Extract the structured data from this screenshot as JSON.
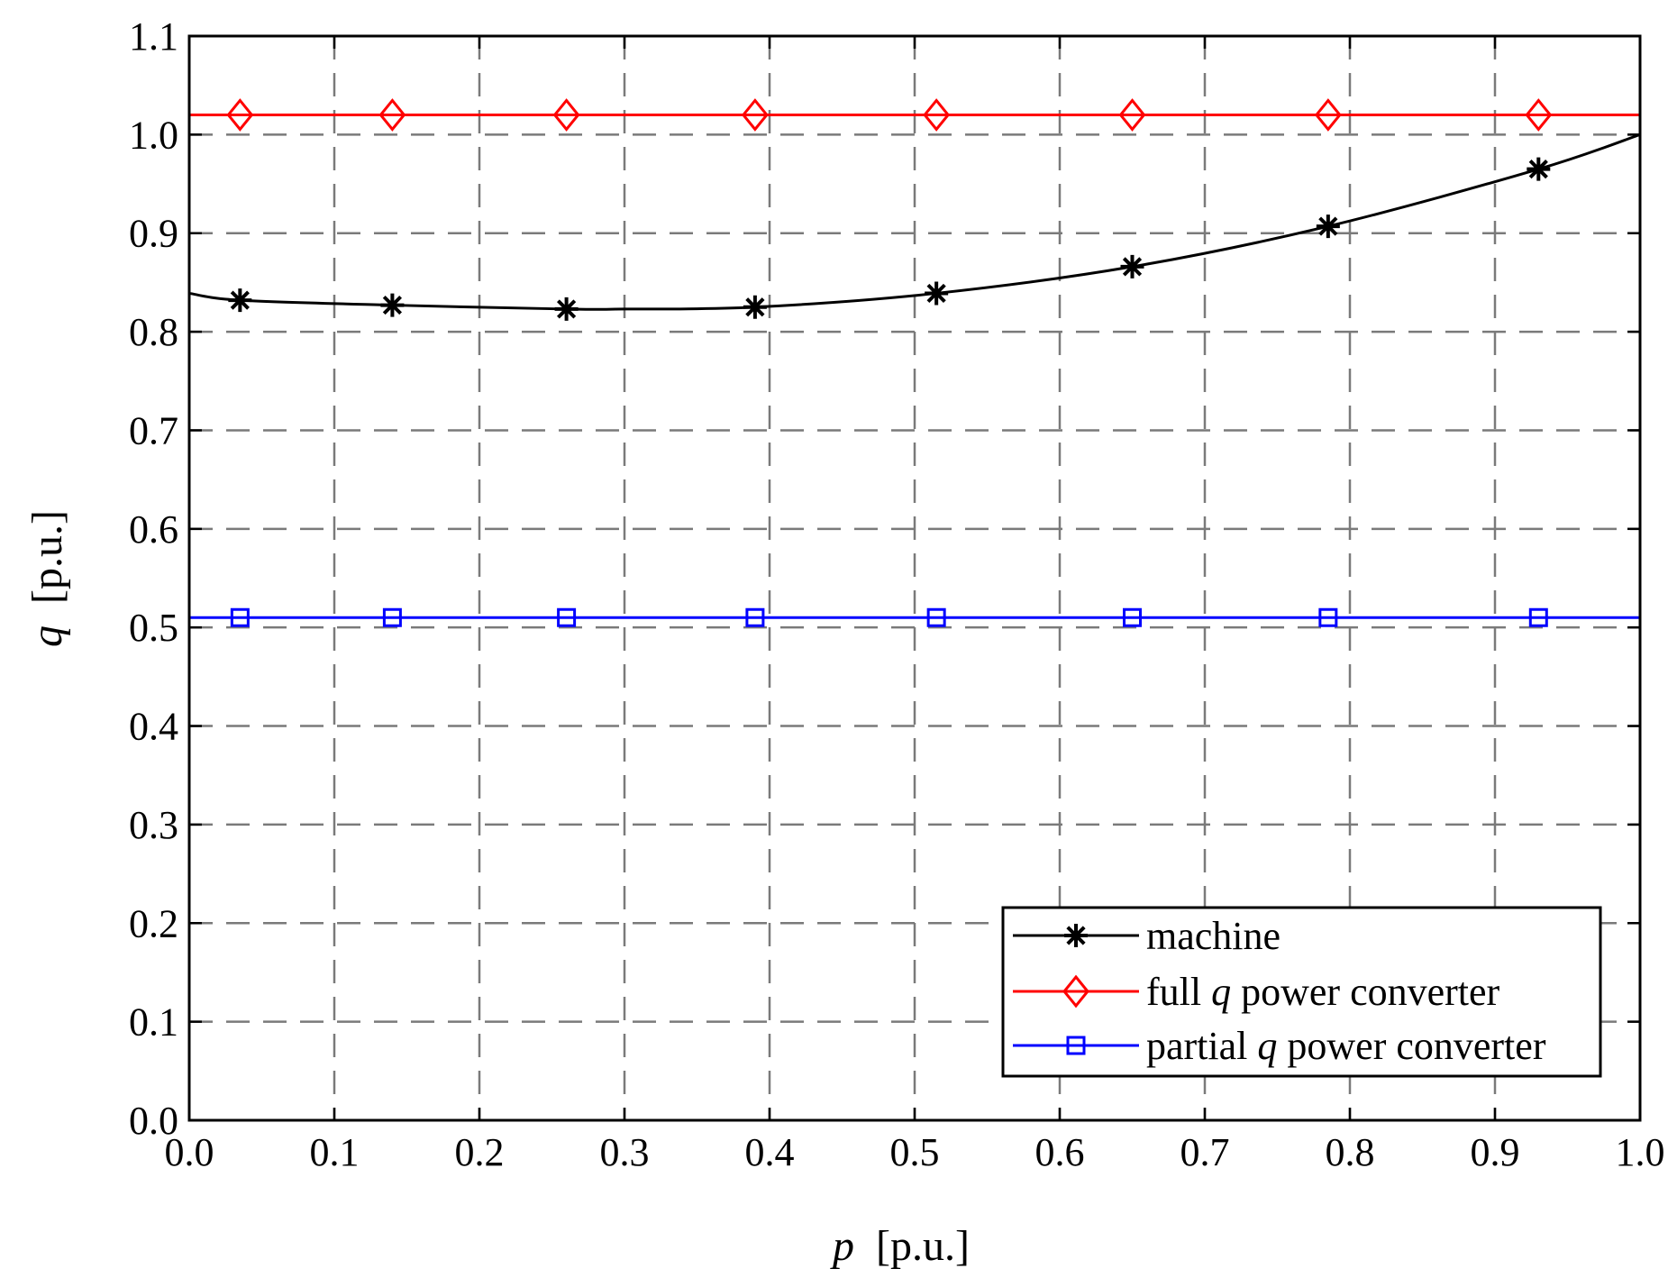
{
  "chart_data": {
    "type": "line",
    "title": "",
    "xlabel": {
      "symbol": "p",
      "unit": "[p.u.]"
    },
    "ylabel": {
      "symbol": "q",
      "unit": "[p.u.]"
    },
    "xlim": [
      0.0,
      1.0
    ],
    "ylim": [
      0.0,
      1.1
    ],
    "xticks": [
      0.0,
      0.1,
      0.2,
      0.3,
      0.4,
      0.5,
      0.6,
      0.7,
      0.8,
      0.9,
      1.0
    ],
    "yticks": [
      0.0,
      0.1,
      0.2,
      0.3,
      0.4,
      0.5,
      0.6,
      0.7,
      0.8,
      0.9,
      1.0,
      1.1
    ],
    "xtick_labels": [
      "0.0",
      "0.1",
      "0.2",
      "0.3",
      "0.4",
      "0.5",
      "0.6",
      "0.7",
      "0.8",
      "0.9",
      "1.0"
    ],
    "ytick_labels": [
      "0.0",
      "0.1",
      "0.2",
      "0.3",
      "0.4",
      "0.5",
      "0.6",
      "0.7",
      "0.8",
      "0.9",
      "1.0",
      "1.1"
    ],
    "grid": "dashed",
    "legend_position": "bottom-right",
    "series": [
      {
        "name": "machine",
        "legend_parts": [
          "machine"
        ],
        "color": "#000000",
        "marker": "asterisk",
        "curve": {
          "x": [
            0.0,
            0.035,
            0.14,
            0.26,
            0.3,
            0.39,
            0.515,
            0.65,
            0.785,
            0.93,
            1.0
          ],
          "y": [
            0.839,
            0.832,
            0.827,
            0.823,
            0.823,
            0.825,
            0.839,
            0.866,
            0.907,
            0.965,
            1.0
          ]
        },
        "markers": {
          "x": [
            0.035,
            0.14,
            0.26,
            0.39,
            0.515,
            0.65,
            0.785,
            0.93
          ],
          "y": [
            0.832,
            0.827,
            0.823,
            0.825,
            0.839,
            0.866,
            0.907,
            0.965
          ]
        }
      },
      {
        "name": "full q power converter",
        "legend_parts": [
          "full ",
          "q",
          " power converter"
        ],
        "color": "#ff0000",
        "marker": "diamond",
        "curve": {
          "x": [
            0.0,
            1.0
          ],
          "y": [
            1.02,
            1.02
          ]
        },
        "markers": {
          "x": [
            0.035,
            0.14,
            0.26,
            0.39,
            0.515,
            0.65,
            0.785,
            0.93
          ],
          "y": [
            1.02,
            1.02,
            1.02,
            1.02,
            1.02,
            1.02,
            1.02,
            1.02
          ]
        }
      },
      {
        "name": "partial q power converter",
        "legend_parts": [
          "partial ",
          "q",
          " power converter"
        ],
        "color": "#0000ff",
        "marker": "square",
        "curve": {
          "x": [
            0.0,
            1.0
          ],
          "y": [
            0.51,
            0.51
          ]
        },
        "markers": {
          "x": [
            0.035,
            0.14,
            0.26,
            0.39,
            0.515,
            0.65,
            0.785,
            0.93
          ],
          "y": [
            0.51,
            0.51,
            0.51,
            0.51,
            0.51,
            0.51,
            0.51,
            0.51
          ]
        }
      }
    ]
  }
}
